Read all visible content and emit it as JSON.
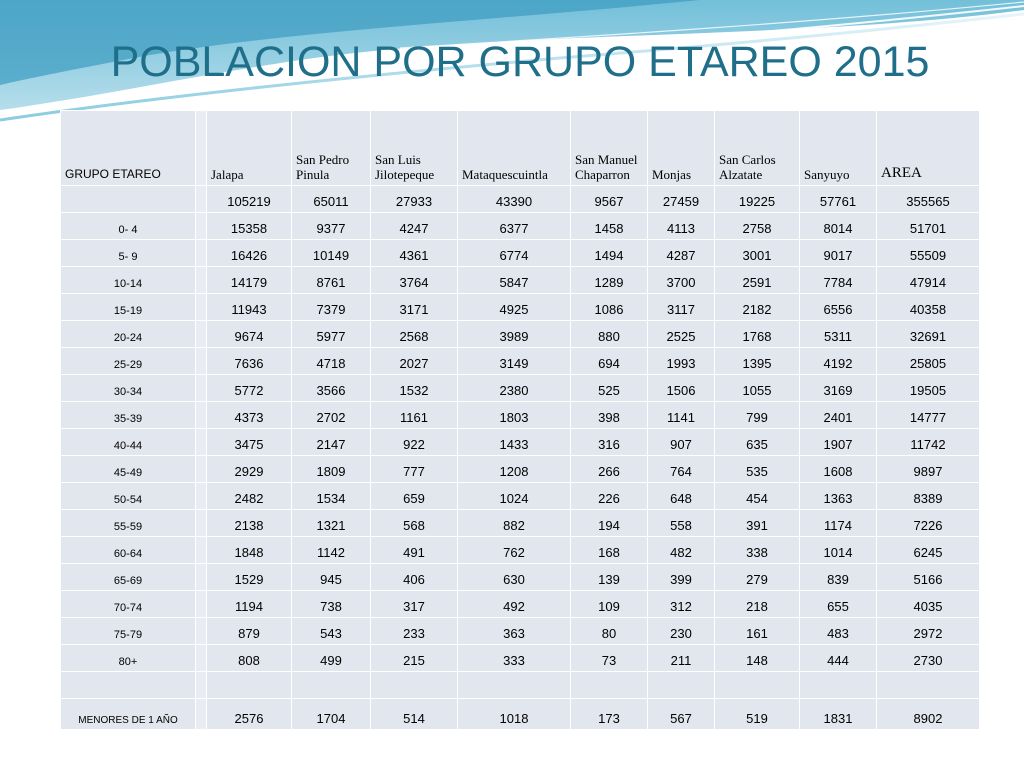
{
  "title": "POBLACION POR GRUPO ETAREO 2015",
  "colors": {
    "title": "#1f6f8b",
    "cell": "#e2e6ef",
    "wave_dark": "#4fa8c8",
    "wave_light": "#bfe3ee"
  },
  "table": {
    "headers": [
      "GRUPO ETAREO",
      "Jalapa",
      "San Pedro Pinula",
      "San Luis Jilotepeque",
      "Mataquescuintla",
      "San Manuel Chaparron",
      "Monjas",
      "San Carlos Alzatate",
      "Sanyuyo",
      "AREA"
    ],
    "rows": [
      {
        "label": "",
        "values": [
          "105219",
          "65011",
          "27933",
          "43390",
          "9567",
          "27459",
          "19225",
          "57761",
          "355565"
        ]
      },
      {
        "label": "0- 4",
        "values": [
          "15358",
          "9377",
          "4247",
          "6377",
          "1458",
          "4113",
          "2758",
          "8014",
          "51701"
        ]
      },
      {
        "label": "5- 9",
        "values": [
          "16426",
          "10149",
          "4361",
          "6774",
          "1494",
          "4287",
          "3001",
          "9017",
          "55509"
        ]
      },
      {
        "label": "10-14",
        "values": [
          "14179",
          "8761",
          "3764",
          "5847",
          "1289",
          "3700",
          "2591",
          "7784",
          "47914"
        ]
      },
      {
        "label": "15-19",
        "values": [
          "11943",
          "7379",
          "3171",
          "4925",
          "1086",
          "3117",
          "2182",
          "6556",
          "40358"
        ]
      },
      {
        "label": "20-24",
        "values": [
          "9674",
          "5977",
          "2568",
          "3989",
          "880",
          "2525",
          "1768",
          "5311",
          "32691"
        ]
      },
      {
        "label": "25-29",
        "values": [
          "7636",
          "4718",
          "2027",
          "3149",
          "694",
          "1993",
          "1395",
          "4192",
          "25805"
        ]
      },
      {
        "label": "30-34",
        "values": [
          "5772",
          "3566",
          "1532",
          "2380",
          "525",
          "1506",
          "1055",
          "3169",
          "19505"
        ]
      },
      {
        "label": "35-39",
        "values": [
          "4373",
          "2702",
          "1161",
          "1803",
          "398",
          "1141",
          "799",
          "2401",
          "14777"
        ]
      },
      {
        "label": "40-44",
        "values": [
          "3475",
          "2147",
          "922",
          "1433",
          "316",
          "907",
          "635",
          "1907",
          "11742"
        ]
      },
      {
        "label": "45-49",
        "values": [
          "2929",
          "1809",
          "777",
          "1208",
          "266",
          "764",
          "535",
          "1608",
          "9897"
        ]
      },
      {
        "label": "50-54",
        "values": [
          "2482",
          "1534",
          "659",
          "1024",
          "226",
          "648",
          "454",
          "1363",
          "8389"
        ]
      },
      {
        "label": "55-59",
        "values": [
          "2138",
          "1321",
          "568",
          "882",
          "194",
          "558",
          "391",
          "1174",
          "7226"
        ]
      },
      {
        "label": "60-64",
        "values": [
          "1848",
          "1142",
          "491",
          "762",
          "168",
          "482",
          "338",
          "1014",
          "6245"
        ]
      },
      {
        "label": "65-69",
        "values": [
          "1529",
          "945",
          "406",
          "630",
          "139",
          "399",
          "279",
          "839",
          "5166"
        ]
      },
      {
        "label": "70-74",
        "values": [
          "1194",
          "738",
          "317",
          "492",
          "109",
          "312",
          "218",
          "655",
          "4035"
        ]
      },
      {
        "label": "75-79",
        "values": [
          "879",
          "543",
          "233",
          "363",
          "80",
          "230",
          "161",
          "483",
          "2972"
        ]
      },
      {
        "label": "80+",
        "values": [
          "808",
          "499",
          "215",
          "333",
          "73",
          "211",
          "148",
          "444",
          "2730"
        ]
      }
    ],
    "last_row": {
      "label": "MENORES DE 1 AÑO",
      "values": [
        "2576",
        "1704",
        "514",
        "1018",
        "173",
        "567",
        "519",
        "1831",
        "8902"
      ]
    }
  }
}
